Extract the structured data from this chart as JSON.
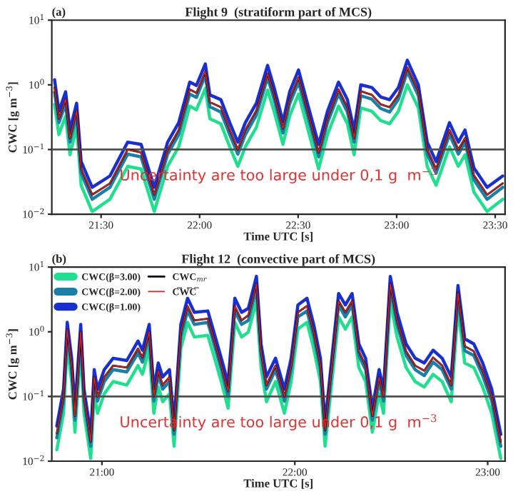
{
  "chart_data": [
    {
      "type": "line",
      "title": "Flight 9  (stratiform part of MCS)",
      "xlabel": "Time UTC [s]",
      "ylabel": "CWC [g m$^{−3}$]",
      "log": "y",
      "grid": false,
      "legend": false,
      "annotations": [
        "(a)",
        "Uncertainty are too large under 0,1 g  m$^{−3}$"
      ],
      "xlim": [
        21.25,
        23.55
      ],
      "xticks": [
        {
          "value": 21.5,
          "label": "21:30"
        },
        {
          "value": 22.0,
          "label": "22:00"
        },
        {
          "value": 22.5,
          "label": "22:30"
        },
        {
          "value": 23.0,
          "label": "23:00"
        },
        {
          "value": 23.5,
          "label": "23:30"
        }
      ],
      "ylim": [
        0.01,
        10
      ],
      "yticks": [
        {
          "value": 0.01,
          "label": "10$^{−2}$"
        },
        {
          "value": 0.1,
          "label": "10$^{−1}$"
        },
        {
          "value": 1,
          "label": "10$^{0}$"
        },
        {
          "value": 10,
          "label": "10$^{1}$"
        }
      ],
      "ref_lines": [
        {
          "axis": "y",
          "value": 0.1,
          "color": "#505050"
        }
      ],
      "x": [
        21.264,
        21.286,
        21.32,
        21.342,
        21.376,
        21.399,
        21.455,
        21.545,
        21.635,
        21.703,
        21.77,
        21.838,
        21.894,
        21.95,
        21.984,
        22.029,
        22.052,
        22.108,
        22.153,
        22.194,
        22.232,
        22.288,
        22.345,
        22.378,
        22.423,
        22.457,
        22.502,
        22.547,
        22.604,
        22.649,
        22.705,
        22.75,
        22.784,
        22.818,
        22.874,
        22.919,
        22.964,
        23.009,
        23.054,
        23.11,
        23.155,
        23.2,
        23.268,
        23.313,
        23.347,
        23.392,
        23.459,
        23.538
      ],
      "series": [
        {
          "color": "#20e090",
          "values": [
            0.5,
            0.17,
            0.33,
            0.083,
            0.22,
            0.028,
            0.011,
            0.017,
            0.055,
            0.05,
            0.011,
            0.055,
            0.11,
            0.47,
            0.41,
            0.88,
            0.3,
            0.25,
            0.11,
            0.055,
            0.11,
            0.22,
            0.83,
            0.39,
            0.12,
            0.33,
            0.72,
            0.22,
            0.05,
            0.17,
            0.47,
            0.25,
            0.083,
            0.44,
            0.39,
            0.28,
            0.25,
            0.39,
            1.0,
            0.44,
            0.055,
            0.028,
            0.11,
            0.055,
            0.083,
            0.022,
            0.011,
            0.017
          ]
        },
        {
          "color": "#1b7fa8",
          "values": [
            0.77,
            0.26,
            0.51,
            0.13,
            0.34,
            0.043,
            0.017,
            0.026,
            0.085,
            0.077,
            0.017,
            0.085,
            0.17,
            0.72,
            0.64,
            1.4,
            0.46,
            0.38,
            0.17,
            0.085,
            0.17,
            0.34,
            1.3,
            0.6,
            0.18,
            0.51,
            1.1,
            0.34,
            0.077,
            0.26,
            0.72,
            0.38,
            0.13,
            0.68,
            0.6,
            0.43,
            0.38,
            0.6,
            1.6,
            0.68,
            0.085,
            0.043,
            0.17,
            0.085,
            0.13,
            0.034,
            0.017,
            0.026
          ]
        },
        {
          "color": "#1a2fd0",
          "values": [
            1.2,
            0.39,
            0.78,
            0.2,
            0.52,
            0.065,
            0.026,
            0.039,
            0.13,
            0.12,
            0.026,
            0.13,
            0.26,
            1.1,
            0.98,
            2.1,
            0.7,
            0.59,
            0.26,
            0.13,
            0.26,
            0.52,
            2.0,
            0.91,
            0.27,
            0.78,
            1.7,
            0.52,
            0.12,
            0.39,
            1.1,
            0.59,
            0.2,
            1.0,
            0.91,
            0.65,
            0.59,
            0.91,
            2.4,
            1.0,
            0.13,
            0.065,
            0.26,
            0.13,
            0.2,
            0.052,
            0.026,
            0.039
          ]
        },
        {
          "color": "#000000",
          "values": [
            0.9,
            0.3,
            0.6,
            0.15,
            0.4,
            0.05,
            0.02,
            0.03,
            0.1,
            0.09,
            0.02,
            0.1,
            0.2,
            0.85,
            0.75,
            1.6,
            0.54,
            0.45,
            0.2,
            0.1,
            0.2,
            0.4,
            1.5,
            0.7,
            0.21,
            0.6,
            1.3,
            0.4,
            0.09,
            0.3,
            0.85,
            0.45,
            0.15,
            0.8,
            0.7,
            0.5,
            0.45,
            0.7,
            1.85,
            0.8,
            0.1,
            0.05,
            0.2,
            0.1,
            0.15,
            0.04,
            0.02,
            0.03
          ]
        },
        {
          "color": "#e02020",
          "values": [
            0.9,
            0.3,
            0.6,
            0.15,
            0.4,
            0.05,
            0.02,
            0.03,
            0.1,
            0.09,
            0.02,
            0.1,
            0.2,
            0.85,
            0.75,
            1.6,
            0.54,
            0.45,
            0.2,
            0.1,
            0.2,
            0.4,
            1.5,
            0.7,
            0.21,
            0.6,
            1.3,
            0.4,
            0.09,
            0.3,
            0.85,
            0.45,
            0.15,
            0.8,
            0.7,
            0.5,
            0.45,
            0.7,
            1.85,
            0.8,
            0.1,
            0.05,
            0.2,
            0.1,
            0.15,
            0.04,
            0.02,
            0.03
          ]
        }
      ]
    },
    {
      "type": "line",
      "title": "Flight 12  (convective part of MCS)",
      "xlabel": "Time UTC [s]",
      "ylabel": "CWC [g m$^{−3}$]",
      "log": "y",
      "grid": false,
      "legend": "top left",
      "annotations": [
        "(b)",
        "Uncertainty are too large under 0,1 g  m$^{−3}$"
      ],
      "xlim": [
        20.74,
        23.09
      ],
      "xticks": [
        {
          "value": 21.0,
          "label": "21:00"
        },
        {
          "value": 22.0,
          "label": "22:00"
        },
        {
          "value": 23.0,
          "label": "23:00"
        }
      ],
      "ylim": [
        0.01,
        10
      ],
      "yticks": [
        {
          "value": 0.01,
          "label": "10$^{−2}$"
        },
        {
          "value": 0.1,
          "label": "10$^{−1}$"
        },
        {
          "value": 1,
          "label": "10$^{0}$"
        },
        {
          "value": 10,
          "label": "10$^{1}$"
        }
      ],
      "ref_lines": [
        {
          "axis": "y",
          "value": 0.1,
          "color": "#505050"
        }
      ],
      "x": [
        20.766,
        20.801,
        20.82,
        20.843,
        20.86,
        20.89,
        20.907,
        20.942,
        20.96,
        20.977,
        21.012,
        21.058,
        21.129,
        21.187,
        21.21,
        21.245,
        21.269,
        21.292,
        21.315,
        21.35,
        21.374,
        21.409,
        21.444,
        21.479,
        21.549,
        21.584,
        21.619,
        21.654,
        21.689,
        21.724,
        21.759,
        21.801,
        21.825,
        21.853,
        21.9,
        21.946,
        21.981,
        22.016,
        22.063,
        22.098,
        22.133,
        22.157,
        22.192,
        22.227,
        22.262,
        22.297,
        22.332,
        22.367,
        22.402,
        22.437,
        22.46,
        22.495,
        22.53,
        22.577,
        22.624,
        22.671,
        22.717,
        22.764,
        22.811,
        22.846,
        22.881,
        22.928,
        22.974,
        23.021,
        23.068
      ],
      "series": [
        {
          "name": "CWC(β=3.00)",
          "color": "#20e090",
          "values": [
            0.015,
            0.055,
            0.61,
            0.17,
            0.028,
            0.55,
            0.055,
            0.011,
            0.11,
            0.055,
            0.11,
            0.17,
            0.15,
            0.3,
            0.22,
            0.55,
            0.055,
            0.14,
            0.083,
            0.11,
            0.017,
            0.55,
            1.4,
            0.83,
            0.88,
            0.39,
            0.17,
            0.066,
            1.4,
            0.83,
            0.99,
            3.0,
            0.28,
            0.083,
            0.17,
            0.055,
            0.17,
            1.1,
            1.4,
            0.55,
            0.17,
            0.017,
            0.17,
            1.7,
            1.1,
            1.7,
            0.28,
            0.17,
            0.028,
            0.11,
            0.055,
            3.0,
            0.83,
            0.28,
            0.17,
            0.14,
            0.22,
            0.17,
            0.083,
            2.2,
            0.33,
            0.28,
            0.14,
            0.055,
            0.011
          ]
        },
        {
          "name": "CWC(β=2.00)",
          "color": "#1b7fa8",
          "values": [
            0.023,
            0.085,
            0.94,
            0.26,
            0.043,
            0.85,
            0.085,
            0.017,
            0.17,
            0.085,
            0.17,
            0.26,
            0.24,
            0.47,
            0.34,
            0.85,
            0.085,
            0.21,
            0.13,
            0.17,
            0.026,
            0.85,
            2.1,
            1.3,
            1.4,
            0.6,
            0.26,
            0.1,
            2.1,
            1.3,
            1.5,
            4.7,
            0.43,
            0.13,
            0.26,
            0.085,
            0.26,
            1.7,
            2.1,
            0.85,
            0.26,
            0.026,
            0.26,
            2.6,
            1.7,
            2.6,
            0.43,
            0.26,
            0.043,
            0.17,
            0.085,
            4.7,
            1.3,
            0.43,
            0.26,
            0.21,
            0.34,
            0.26,
            0.13,
            3.4,
            0.51,
            0.43,
            0.21,
            0.085,
            0.017
          ]
        },
        {
          "name": "CWC(β=1.00)",
          "color": "#1a2fd0",
          "values": [
            0.035,
            0.13,
            1.4,
            0.39,
            0.065,
            1.3,
            0.13,
            0.026,
            0.26,
            0.13,
            0.26,
            0.39,
            0.36,
            0.72,
            0.52,
            1.3,
            0.13,
            0.33,
            0.2,
            0.26,
            0.039,
            1.3,
            3.3,
            2.0,
            2.1,
            0.91,
            0.39,
            0.16,
            3.3,
            2.0,
            2.3,
            7.2,
            0.65,
            0.2,
            0.39,
            0.13,
            0.39,
            2.6,
            3.3,
            1.3,
            0.39,
            0.039,
            0.39,
            3.9,
            2.6,
            3.9,
            0.65,
            0.39,
            0.065,
            0.26,
            0.13,
            7.2,
            2.0,
            0.65,
            0.39,
            0.33,
            0.52,
            0.39,
            0.2,
            5.2,
            0.78,
            0.65,
            0.33,
            0.13,
            0.026
          ]
        },
        {
          "name": "CWC$_{mr}$",
          "color": "#000000",
          "values": [
            0.027,
            0.1,
            1.1,
            0.3,
            0.05,
            1.0,
            0.1,
            0.02,
            0.2,
            0.1,
            0.2,
            0.3,
            0.28,
            0.55,
            0.4,
            1.0,
            0.1,
            0.25,
            0.15,
            0.2,
            0.03,
            1.0,
            2.5,
            1.5,
            1.6,
            0.7,
            0.3,
            0.12,
            2.5,
            1.5,
            1.8,
            5.5,
            0.5,
            0.15,
            0.3,
            0.1,
            0.3,
            2.0,
            2.5,
            1.0,
            0.3,
            0.03,
            0.3,
            3.0,
            2.0,
            3.0,
            0.5,
            0.3,
            0.05,
            0.2,
            0.1,
            5.5,
            1.5,
            0.5,
            0.3,
            0.25,
            0.4,
            0.3,
            0.15,
            4.0,
            0.6,
            0.5,
            0.25,
            0.1,
            0.02
          ]
        },
        {
          "name": "C̅W̅C̅",
          "color": "#e02020",
          "values": [
            0.027,
            0.1,
            1.1,
            0.3,
            0.05,
            1.0,
            0.1,
            0.02,
            0.2,
            0.1,
            0.2,
            0.3,
            0.28,
            0.55,
            0.4,
            1.0,
            0.1,
            0.25,
            0.15,
            0.2,
            0.03,
            1.0,
            2.5,
            1.5,
            1.6,
            0.7,
            0.3,
            0.12,
            2.5,
            1.5,
            1.8,
            5.5,
            0.5,
            0.15,
            0.3,
            0.1,
            0.3,
            2.0,
            2.5,
            1.0,
            0.3,
            0.03,
            0.3,
            3.0,
            2.0,
            3.0,
            0.5,
            0.3,
            0.05,
            0.2,
            0.1,
            5.5,
            1.5,
            0.5,
            0.3,
            0.25,
            0.4,
            0.3,
            0.15,
            4.0,
            0.6,
            0.5,
            0.25,
            0.1,
            0.02
          ]
        }
      ]
    }
  ]
}
